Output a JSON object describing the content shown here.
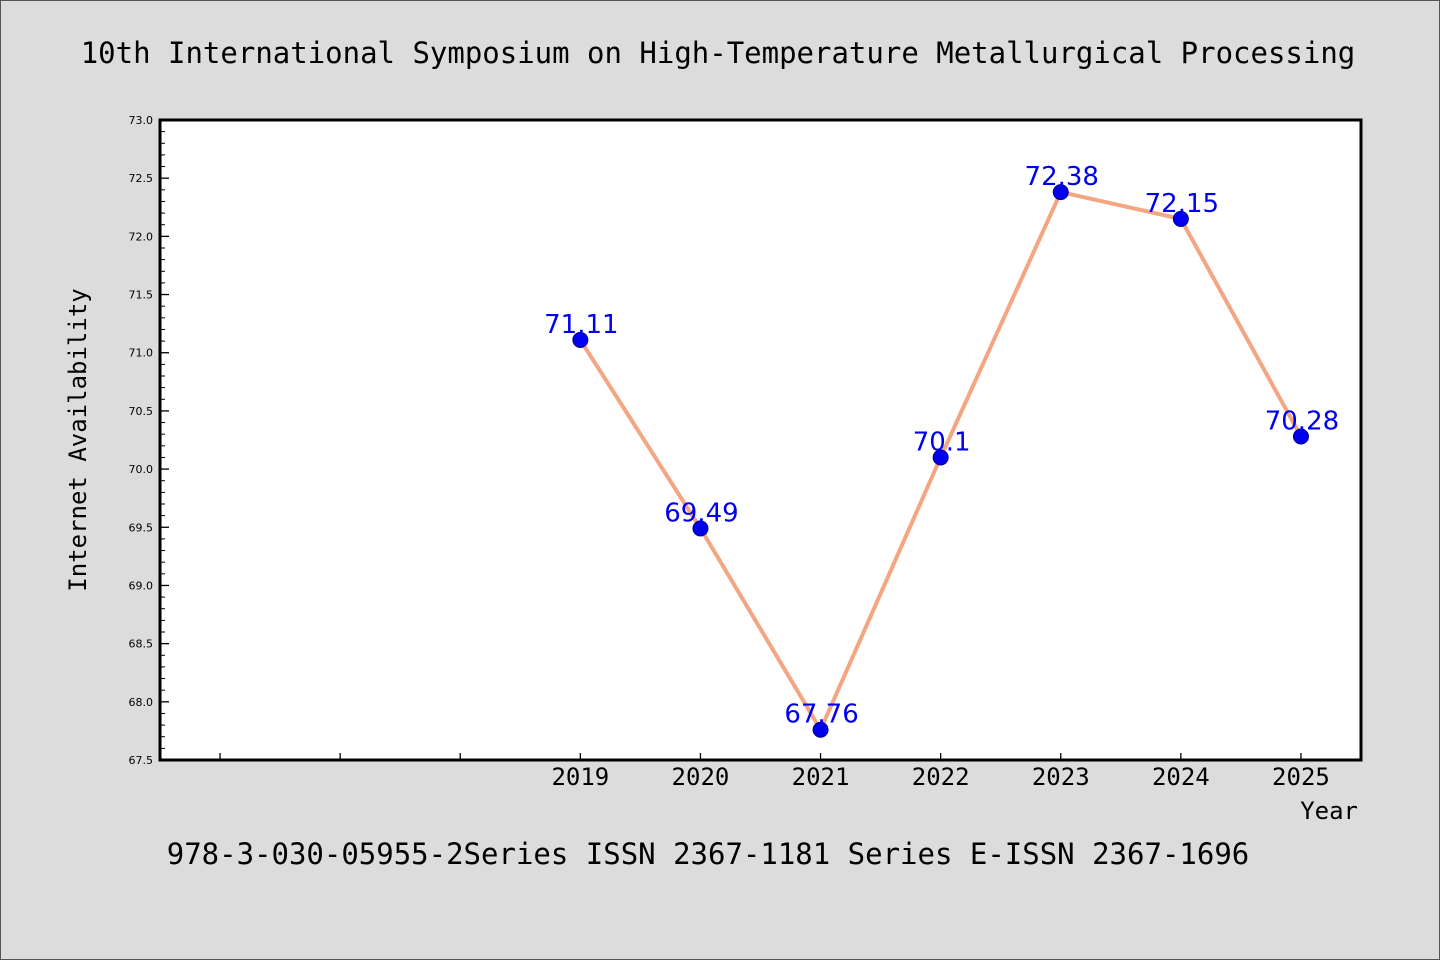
{
  "chart_data": {
    "type": "line",
    "title": "10th International Symposium on High-Temperature Metallurgical Processing",
    "xlabel": "Year",
    "ylabel": "Internet Availability",
    "footer": "978-3-030-05955-2Series ISSN 2367-1181 Series E-ISSN 2367-1696",
    "x_tick_labels": [
      "2019",
      "2020",
      "2021",
      "2022",
      "2023",
      "2024",
      "2025"
    ],
    "x_slot_range": [
      2015.5,
      2025.5
    ],
    "y_tick_labels": [
      "67.5",
      "68.0",
      "68.5",
      "69.0",
      "69.5",
      "70.0",
      "70.5",
      "71.0",
      "71.5",
      "72.0",
      "72.5",
      "73.0"
    ],
    "ylim": [
      67.5,
      73.0
    ],
    "grid": false,
    "legend": "none",
    "series": [
      {
        "x": [
          2019,
          2020,
          2021,
          2022,
          2023,
          2024,
          2025
        ],
        "values": [
          71.11,
          69.49,
          67.76,
          70.1,
          72.38,
          72.15,
          70.28
        ],
        "labels": [
          "71.11",
          "69.49",
          "67.76",
          "70.1",
          "72.38",
          "72.15",
          "70.28"
        ]
      }
    ],
    "colors": {
      "background": "#dcdcdc",
      "plot_background": "#ffffff",
      "line": "#f4a582",
      "marker": "#0000ee",
      "data_label": "#0000ee",
      "axis": "#000000"
    }
  }
}
